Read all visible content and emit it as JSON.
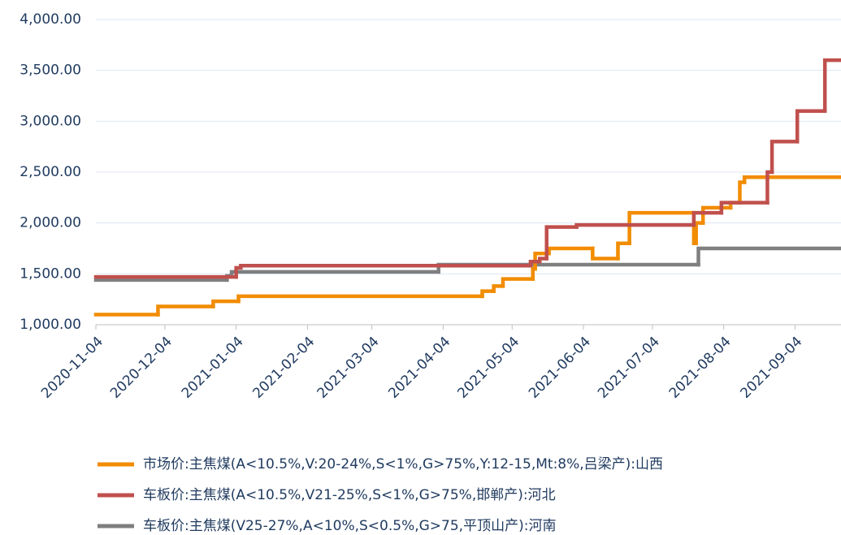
{
  "chart_data": {
    "type": "step",
    "xlim": [
      "2020-11-04",
      "2021-09-24"
    ],
    "xticks": [
      "2020-11-04",
      "2020-12-04",
      "2021-01-04",
      "2021-02-04",
      "2021-03-04",
      "2021-04-04",
      "2021-05-04",
      "2021-06-04",
      "2021-07-04",
      "2021-08-04",
      "2021-09-04"
    ],
    "ylim": [
      1000,
      4000
    ],
    "yticks": [
      {
        "value": 1000,
        "label": "1,000.00"
      },
      {
        "value": 1500,
        "label": "1,500.00"
      },
      {
        "value": 2000,
        "label": "2,000.00"
      },
      {
        "value": 2500,
        "label": "2,500.00"
      },
      {
        "value": 3000,
        "label": "3,000.00"
      },
      {
        "value": 3500,
        "label": "3,500.00"
      },
      {
        "value": 4000,
        "label": "4,000.00"
      }
    ],
    "grid": true,
    "legend": "bottom",
    "series": [
      {
        "name": "市场价:主焦煤(A<10.5%,V:20-24%,S<1%,G>75%,Y:12-15,Mt:8%,吕梁产):山西",
        "color": "#f28c00",
        "x": [
          "2020-11-04",
          "2020-12-01",
          "2020-12-25",
          "2021-01-05",
          "2021-04-21",
          "2021-04-26",
          "2021-04-30",
          "2021-05-13",
          "2021-05-14",
          "2021-05-20",
          "2021-06-08",
          "2021-06-19",
          "2021-06-24",
          "2021-07-22",
          "2021-07-23",
          "2021-07-26",
          "2021-08-07",
          "2021-08-11",
          "2021-08-13"
        ],
        "values": [
          1100,
          1180,
          1230,
          1280,
          1330,
          1380,
          1450,
          1550,
          1700,
          1750,
          1650,
          1800,
          2100,
          1800,
          2000,
          2150,
          2200,
          2400,
          2450
        ]
      },
      {
        "name": "车板价:主焦煤(A<10.5%,V21-25%,S<1%,G>75%,邯郸产):河北",
        "color": "#c0504d",
        "x": [
          "2020-11-04",
          "2021-01-04",
          "2021-01-06",
          "2021-05-12",
          "2021-05-16",
          "2021-05-19",
          "2021-06-01",
          "2021-07-22",
          "2021-08-03",
          "2021-08-23",
          "2021-08-25",
          "2021-09-05",
          "2021-09-17"
        ],
        "values": [
          1470,
          1560,
          1580,
          1620,
          1650,
          1960,
          1980,
          2100,
          2200,
          2500,
          2800,
          3100,
          3600
        ]
      },
      {
        "name": "车板价:主焦煤(V25-27%,A<10%,S<0.5%,G>75,平顶山产):河南",
        "color": "#7f7f7f",
        "x": [
          "2020-11-04",
          "2020-12-31",
          "2021-01-02",
          "2021-04-02",
          "2021-07-24"
        ],
        "values": [
          1440,
          1480,
          1520,
          1590,
          1750
        ]
      }
    ]
  }
}
